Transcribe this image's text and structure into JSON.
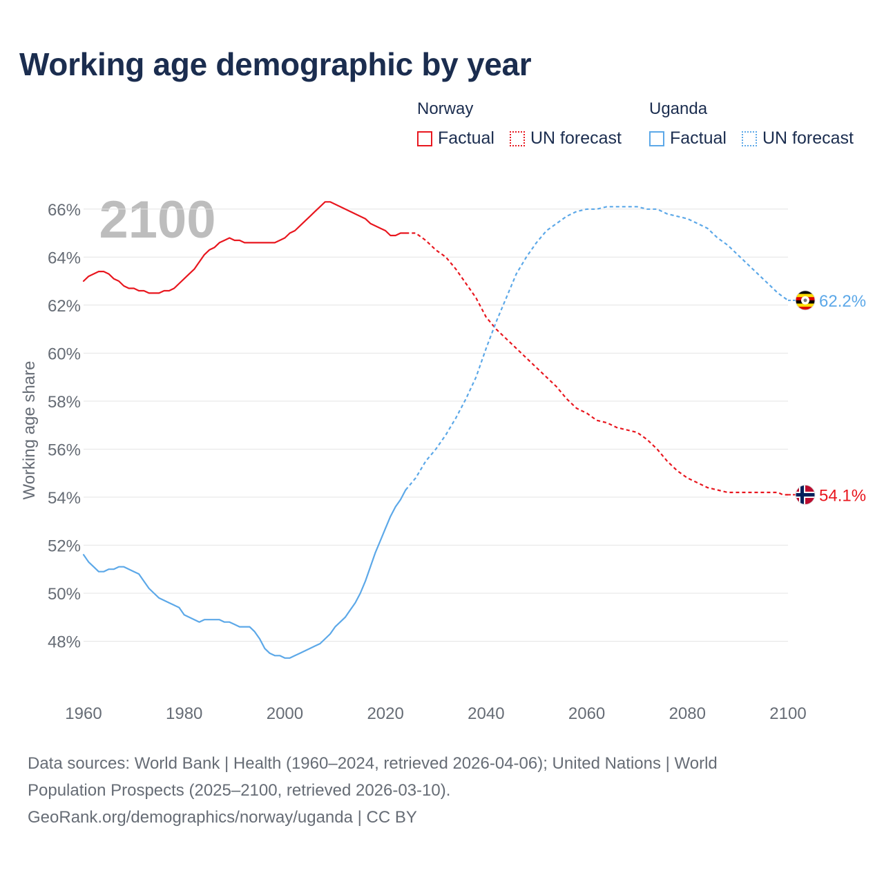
{
  "title": "Working age demographic by year",
  "legend": {
    "groups": [
      {
        "name": "Norway",
        "color": "#e8161e",
        "factual_label": "Factual",
        "forecast_label": "UN forecast"
      },
      {
        "name": "Uganda",
        "color": "#5ca8e8",
        "factual_label": "Factual",
        "forecast_label": "UN forecast"
      }
    ]
  },
  "footer": {
    "line1": "Data sources: World Bank | Health (1960–2024, retrieved 2026-04-06); United Nations | World",
    "line2": "Population Prospects (2025–2100, retrieved 2026-03-10).",
    "line3": "GeoRank.org/demographics/norway/uganda | CC BY"
  },
  "chart_data": {
    "type": "line",
    "title": "Working age demographic by year",
    "year_watermark": "2100",
    "xlabel": "",
    "ylabel": "Working age share",
    "xlim": [
      1960,
      2100
    ],
    "ylim": [
      46,
      67
    ],
    "x_ticks": [
      1960,
      1980,
      2000,
      2020,
      2040,
      2060,
      2080,
      2100
    ],
    "x_tick_labels": [
      "1960",
      "1980",
      "2000",
      "2020",
      "2040",
      "2060",
      "2080",
      "2100"
    ],
    "y_ticks": [
      48,
      50,
      52,
      54,
      56,
      58,
      60,
      62,
      64,
      66
    ],
    "y_tick_labels": [
      "48%",
      "50%",
      "52%",
      "54%",
      "56%",
      "58%",
      "60%",
      "62%",
      "64%",
      "66%"
    ],
    "grid": true,
    "series": [
      {
        "name": "Norway",
        "color": "#e8161e",
        "end_label": "54.1%",
        "flag": "norway-flag",
        "factual": [
          [
            1960,
            63.0
          ],
          [
            1961,
            63.2
          ],
          [
            1962,
            63.3
          ],
          [
            1963,
            63.4
          ],
          [
            1964,
            63.4
          ],
          [
            1965,
            63.3
          ],
          [
            1966,
            63.1
          ],
          [
            1967,
            63.0
          ],
          [
            1968,
            62.8
          ],
          [
            1969,
            62.7
          ],
          [
            1970,
            62.7
          ],
          [
            1971,
            62.6
          ],
          [
            1972,
            62.6
          ],
          [
            1973,
            62.5
          ],
          [
            1974,
            62.5
          ],
          [
            1975,
            62.5
          ],
          [
            1976,
            62.6
          ],
          [
            1977,
            62.6
          ],
          [
            1978,
            62.7
          ],
          [
            1979,
            62.9
          ],
          [
            1980,
            63.1
          ],
          [
            1981,
            63.3
          ],
          [
            1982,
            63.5
          ],
          [
            1983,
            63.8
          ],
          [
            1984,
            64.1
          ],
          [
            1985,
            64.3
          ],
          [
            1986,
            64.4
          ],
          [
            1987,
            64.6
          ],
          [
            1988,
            64.7
          ],
          [
            1989,
            64.8
          ],
          [
            1990,
            64.7
          ],
          [
            1991,
            64.7
          ],
          [
            1992,
            64.6
          ],
          [
            1993,
            64.6
          ],
          [
            1994,
            64.6
          ],
          [
            1995,
            64.6
          ],
          [
            1996,
            64.6
          ],
          [
            1997,
            64.6
          ],
          [
            1998,
            64.6
          ],
          [
            1999,
            64.7
          ],
          [
            2000,
            64.8
          ],
          [
            2001,
            65.0
          ],
          [
            2002,
            65.1
          ],
          [
            2003,
            65.3
          ],
          [
            2004,
            65.5
          ],
          [
            2005,
            65.7
          ],
          [
            2006,
            65.9
          ],
          [
            2007,
            66.1
          ],
          [
            2008,
            66.3
          ],
          [
            2009,
            66.3
          ],
          [
            2010,
            66.2
          ],
          [
            2011,
            66.1
          ],
          [
            2012,
            66.0
          ],
          [
            2013,
            65.9
          ],
          [
            2014,
            65.8
          ],
          [
            2015,
            65.7
          ],
          [
            2016,
            65.6
          ],
          [
            2017,
            65.4
          ],
          [
            2018,
            65.3
          ],
          [
            2019,
            65.2
          ],
          [
            2020,
            65.1
          ],
          [
            2021,
            64.9
          ],
          [
            2022,
            64.9
          ],
          [
            2023,
            65.0
          ],
          [
            2024,
            65.0
          ]
        ],
        "forecast": [
          [
            2024,
            65.0
          ],
          [
            2025,
            65.0
          ],
          [
            2026,
            65.0
          ],
          [
            2028,
            64.7
          ],
          [
            2030,
            64.3
          ],
          [
            2032,
            64.0
          ],
          [
            2034,
            63.5
          ],
          [
            2036,
            62.9
          ],
          [
            2038,
            62.3
          ],
          [
            2040,
            61.5
          ],
          [
            2042,
            61.0
          ],
          [
            2044,
            60.6
          ],
          [
            2046,
            60.2
          ],
          [
            2048,
            59.8
          ],
          [
            2050,
            59.4
          ],
          [
            2052,
            59.0
          ],
          [
            2054,
            58.6
          ],
          [
            2056,
            58.1
          ],
          [
            2058,
            57.7
          ],
          [
            2060,
            57.5
          ],
          [
            2062,
            57.2
          ],
          [
            2064,
            57.1
          ],
          [
            2066,
            56.9
          ],
          [
            2068,
            56.8
          ],
          [
            2070,
            56.7
          ],
          [
            2072,
            56.4
          ],
          [
            2074,
            56.0
          ],
          [
            2076,
            55.5
          ],
          [
            2078,
            55.1
          ],
          [
            2080,
            54.8
          ],
          [
            2082,
            54.6
          ],
          [
            2084,
            54.4
          ],
          [
            2086,
            54.3
          ],
          [
            2088,
            54.2
          ],
          [
            2090,
            54.2
          ],
          [
            2092,
            54.2
          ],
          [
            2094,
            54.2
          ],
          [
            2096,
            54.2
          ],
          [
            2098,
            54.2
          ],
          [
            2099,
            54.1
          ],
          [
            2100,
            54.1
          ]
        ]
      },
      {
        "name": "Uganda",
        "color": "#5ca8e8",
        "end_label": "62.2%",
        "flag": "uganda-flag",
        "factual": [
          [
            1960,
            51.6
          ],
          [
            1961,
            51.3
          ],
          [
            1962,
            51.1
          ],
          [
            1963,
            50.9
          ],
          [
            1964,
            50.9
          ],
          [
            1965,
            51.0
          ],
          [
            1966,
            51.0
          ],
          [
            1967,
            51.1
          ],
          [
            1968,
            51.1
          ],
          [
            1969,
            51.0
          ],
          [
            1970,
            50.9
          ],
          [
            1971,
            50.8
          ],
          [
            1972,
            50.5
          ],
          [
            1973,
            50.2
          ],
          [
            1974,
            50.0
          ],
          [
            1975,
            49.8
          ],
          [
            1976,
            49.7
          ],
          [
            1977,
            49.6
          ],
          [
            1978,
            49.5
          ],
          [
            1979,
            49.4
          ],
          [
            1980,
            49.1
          ],
          [
            1981,
            49.0
          ],
          [
            1982,
            48.9
          ],
          [
            1983,
            48.8
          ],
          [
            1984,
            48.9
          ],
          [
            1985,
            48.9
          ],
          [
            1986,
            48.9
          ],
          [
            1987,
            48.9
          ],
          [
            1988,
            48.8
          ],
          [
            1989,
            48.8
          ],
          [
            1990,
            48.7
          ],
          [
            1991,
            48.6
          ],
          [
            1992,
            48.6
          ],
          [
            1993,
            48.6
          ],
          [
            1994,
            48.4
          ],
          [
            1995,
            48.1
          ],
          [
            1996,
            47.7
          ],
          [
            1997,
            47.5
          ],
          [
            1998,
            47.4
          ],
          [
            1999,
            47.4
          ],
          [
            2000,
            47.3
          ],
          [
            2001,
            47.3
          ],
          [
            2002,
            47.4
          ],
          [
            2003,
            47.5
          ],
          [
            2004,
            47.6
          ],
          [
            2005,
            47.7
          ],
          [
            2006,
            47.8
          ],
          [
            2007,
            47.9
          ],
          [
            2008,
            48.1
          ],
          [
            2009,
            48.3
          ],
          [
            2010,
            48.6
          ],
          [
            2011,
            48.8
          ],
          [
            2012,
            49.0
          ],
          [
            2013,
            49.3
          ],
          [
            2014,
            49.6
          ],
          [
            2015,
            50.0
          ],
          [
            2016,
            50.5
          ],
          [
            2017,
            51.1
          ],
          [
            2018,
            51.7
          ],
          [
            2019,
            52.2
          ],
          [
            2020,
            52.7
          ],
          [
            2021,
            53.2
          ],
          [
            2022,
            53.6
          ],
          [
            2023,
            53.9
          ],
          [
            2024,
            54.3
          ]
        ],
        "forecast": [
          [
            2024,
            54.3
          ],
          [
            2026,
            54.8
          ],
          [
            2028,
            55.5
          ],
          [
            2030,
            56.0
          ],
          [
            2032,
            56.6
          ],
          [
            2034,
            57.3
          ],
          [
            2036,
            58.1
          ],
          [
            2038,
            59.0
          ],
          [
            2040,
            60.2
          ],
          [
            2042,
            61.3
          ],
          [
            2044,
            62.3
          ],
          [
            2046,
            63.3
          ],
          [
            2048,
            64.0
          ],
          [
            2050,
            64.6
          ],
          [
            2052,
            65.1
          ],
          [
            2054,
            65.4
          ],
          [
            2056,
            65.7
          ],
          [
            2058,
            65.9
          ],
          [
            2060,
            66.0
          ],
          [
            2062,
            66.0
          ],
          [
            2064,
            66.1
          ],
          [
            2066,
            66.1
          ],
          [
            2068,
            66.1
          ],
          [
            2070,
            66.1
          ],
          [
            2072,
            66.0
          ],
          [
            2074,
            66.0
          ],
          [
            2076,
            65.8
          ],
          [
            2078,
            65.7
          ],
          [
            2080,
            65.6
          ],
          [
            2082,
            65.4
          ],
          [
            2084,
            65.2
          ],
          [
            2086,
            64.8
          ],
          [
            2088,
            64.5
          ],
          [
            2090,
            64.1
          ],
          [
            2092,
            63.7
          ],
          [
            2094,
            63.3
          ],
          [
            2096,
            62.9
          ],
          [
            2098,
            62.5
          ],
          [
            2100,
            62.2
          ]
        ]
      }
    ]
  }
}
